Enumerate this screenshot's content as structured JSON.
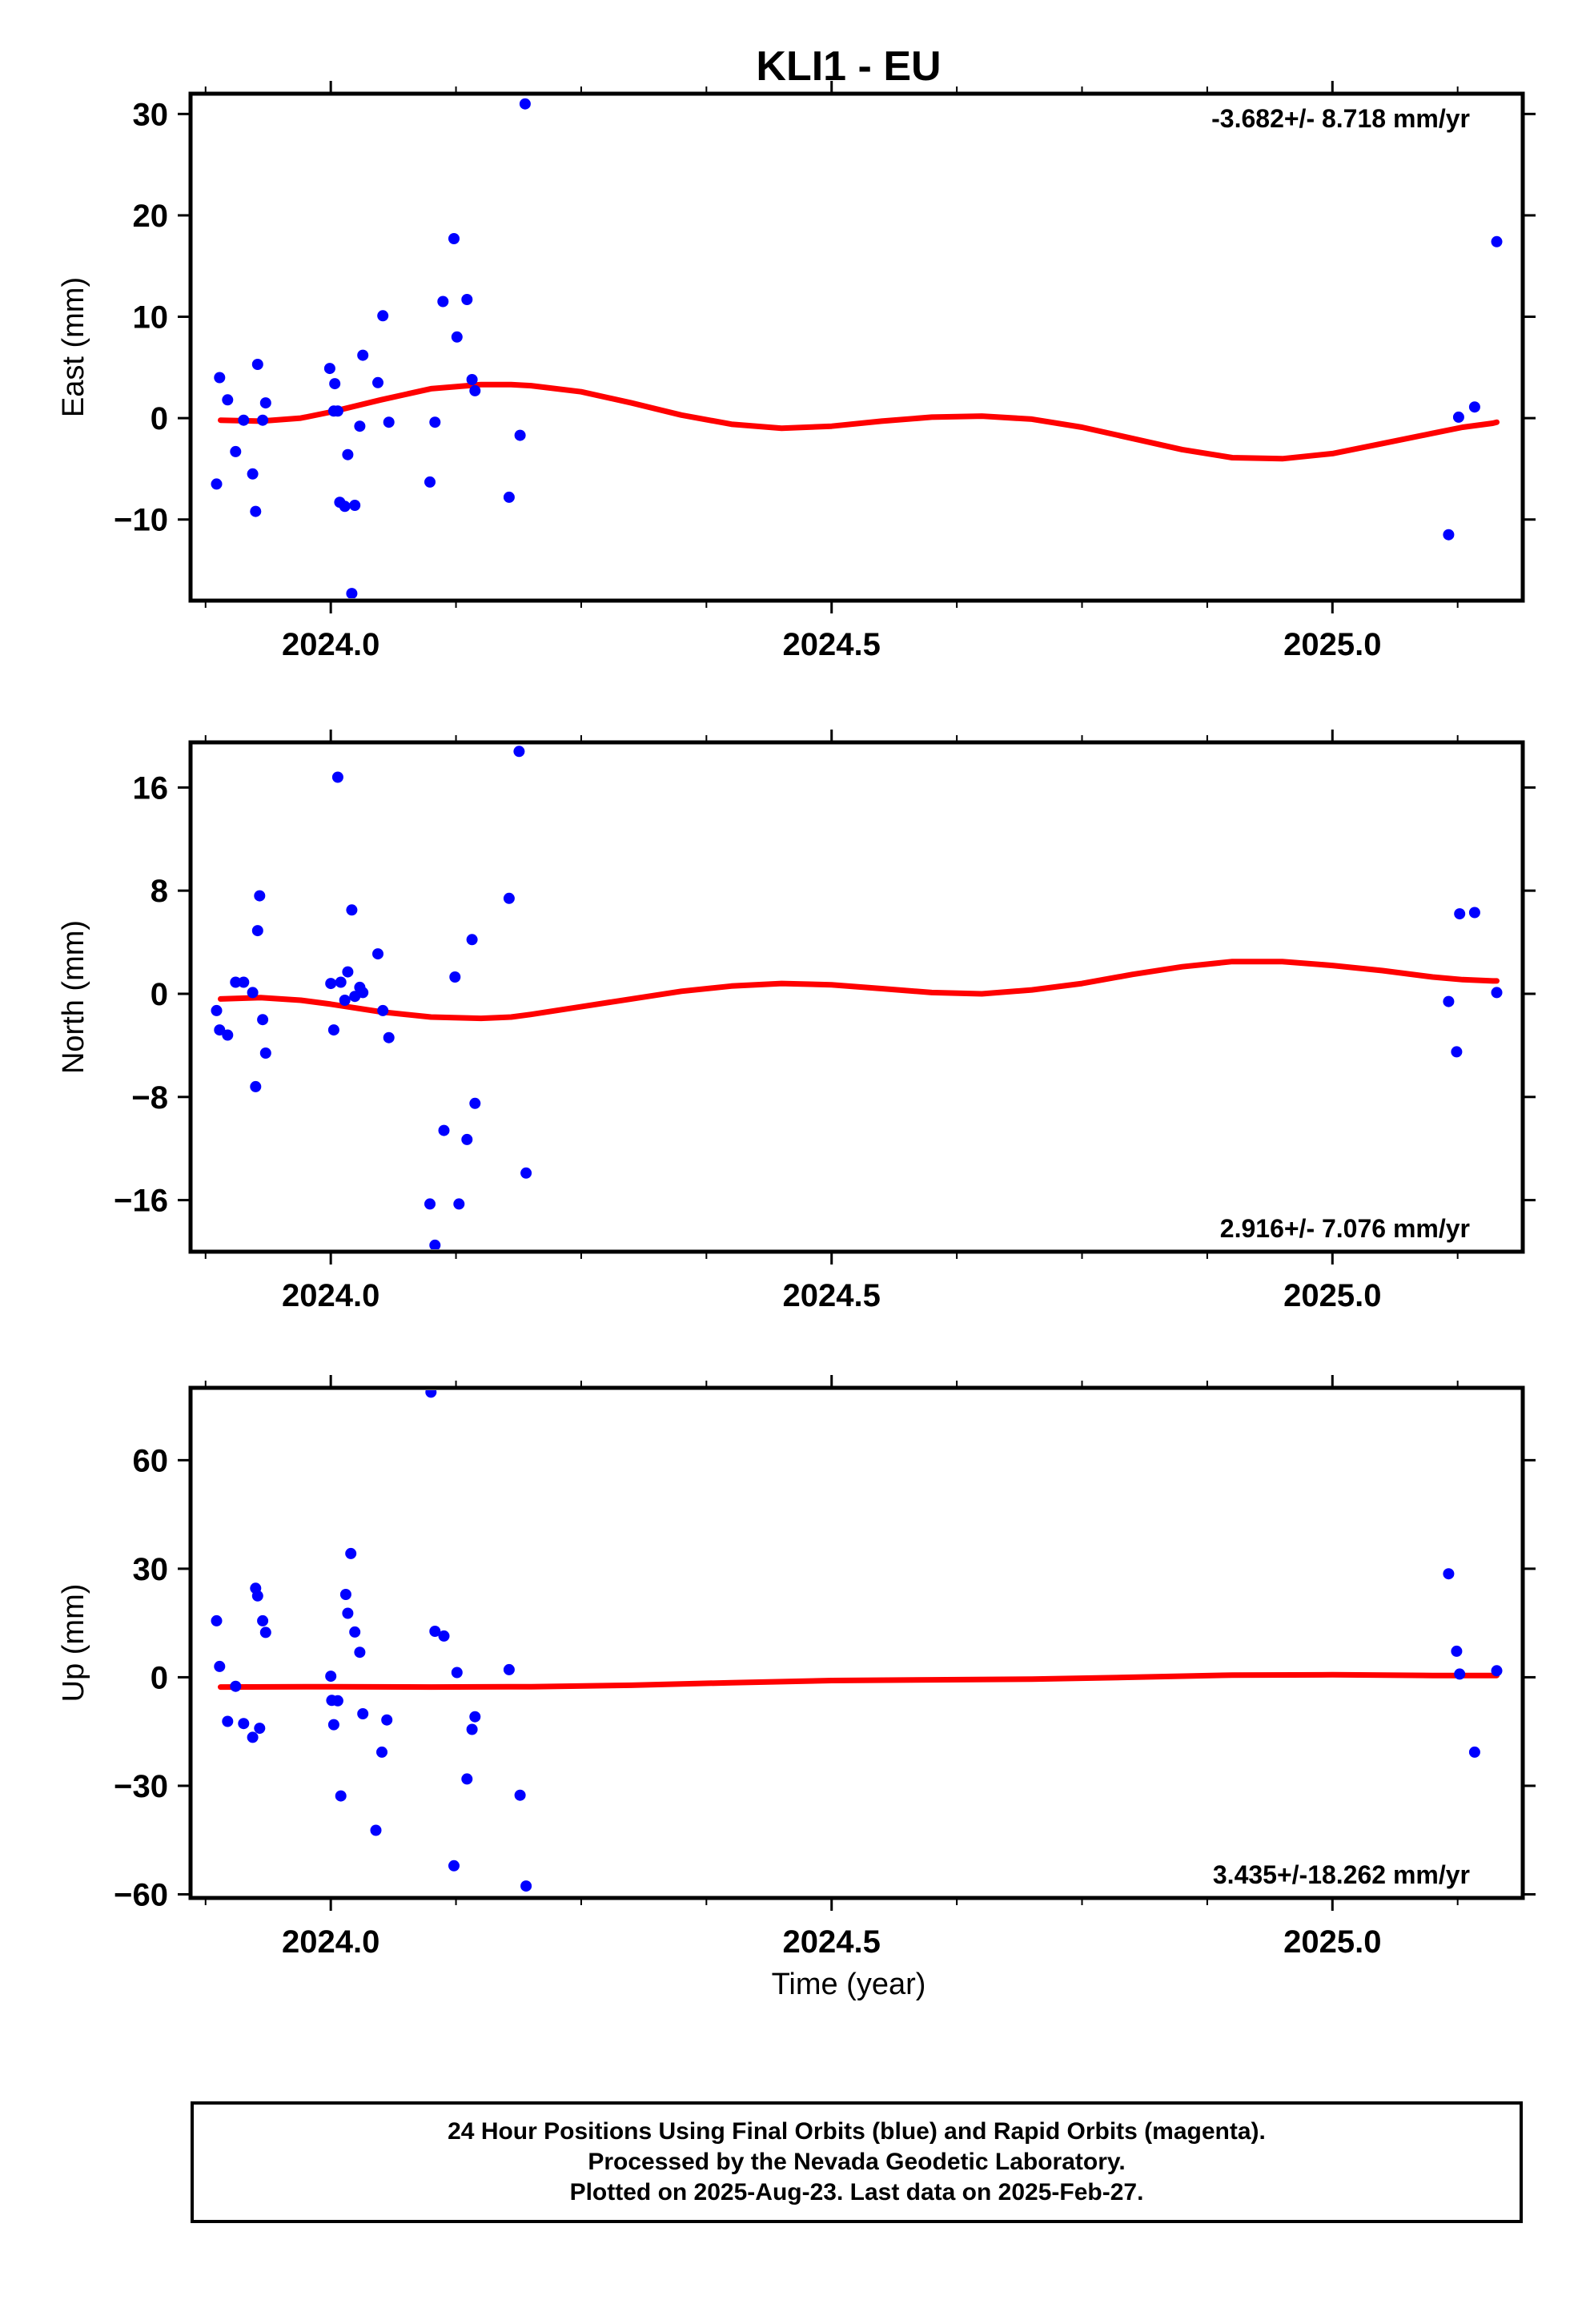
{
  "title": "KLI1 - EU",
  "xlabel": "Time (year)",
  "x_tick_labels": [
    "2024.0",
    "2024.5",
    "2025.0"
  ],
  "footer": {
    "line1": "24 Hour Positions Using Final Orbits (blue) and Rapid Orbits (magenta).",
    "line2": "Processed by the Nevada Geodetic Laboratory.",
    "line3": "Plotted on 2025-Aug-23. Last data on 2025-Feb-27."
  },
  "colors": {
    "points": "#0000ff",
    "fit": "#ff0000",
    "axes": "#000000"
  },
  "chart_data": [
    {
      "type": "scatter",
      "ylabel": "East (mm)",
      "xlim": [
        2023.86,
        2025.19
      ],
      "ylim": [
        -18,
        32
      ],
      "yticks": [
        30,
        20,
        10,
        0,
        -10
      ],
      "ytick_labels": [
        "30",
        "20",
        "10",
        "0",
        "−10"
      ],
      "xticks": [
        2024.0,
        2024.5,
        2025.0
      ],
      "rate_label": "-3.682+/- 8.718 mm/yr",
      "rate_position": "top-right",
      "points": [
        [
          2023.886,
          -6.5
        ],
        [
          2023.889,
          4.0
        ],
        [
          2023.897,
          1.8
        ],
        [
          2023.905,
          -3.3
        ],
        [
          2023.913,
          -0.2
        ],
        [
          2023.922,
          -5.5
        ],
        [
          2023.925,
          -9.2
        ],
        [
          2023.927,
          5.3
        ],
        [
          2023.932,
          -0.2
        ],
        [
          2023.935,
          1.5
        ],
        [
          2023.999,
          4.9
        ],
        [
          2024.003,
          0.7
        ],
        [
          2024.004,
          3.4
        ],
        [
          2024.007,
          0.7
        ],
        [
          2024.009,
          -8.3
        ],
        [
          2024.014,
          -8.7
        ],
        [
          2024.017,
          -3.6
        ],
        [
          2024.021,
          -17.3
        ],
        [
          2024.024,
          -8.6
        ],
        [
          2024.029,
          -0.8
        ],
        [
          2024.032,
          6.2
        ],
        [
          2024.047,
          3.5
        ],
        [
          2024.052,
          10.1
        ],
        [
          2024.058,
          -0.4
        ],
        [
          2024.099,
          -6.3
        ],
        [
          2024.104,
          -0.4
        ],
        [
          2024.112,
          11.5
        ],
        [
          2024.123,
          17.7
        ],
        [
          2024.126,
          8.0
        ],
        [
          2024.136,
          11.7
        ],
        [
          2024.141,
          3.8
        ],
        [
          2024.144,
          2.7
        ],
        [
          2024.178,
          -7.8
        ],
        [
          2024.189,
          -1.7
        ],
        [
          2024.194,
          31.0
        ],
        [
          2025.116,
          -11.5
        ],
        [
          2025.126,
          0.1
        ],
        [
          2025.142,
          1.1
        ],
        [
          2025.164,
          17.4
        ]
      ],
      "fit": [
        [
          2023.89,
          -0.2
        ],
        [
          2023.93,
          -0.3
        ],
        [
          2023.97,
          0.0
        ],
        [
          2024.0,
          0.6
        ],
        [
          2024.05,
          1.8
        ],
        [
          2024.1,
          2.9
        ],
        [
          2024.15,
          3.3
        ],
        [
          2024.18,
          3.3
        ],
        [
          2024.2,
          3.2
        ],
        [
          2024.25,
          2.6
        ],
        [
          2024.3,
          1.5
        ],
        [
          2024.35,
          0.3
        ],
        [
          2024.4,
          -0.6
        ],
        [
          2024.45,
          -1.0
        ],
        [
          2024.5,
          -0.8
        ],
        [
          2024.55,
          -0.3
        ],
        [
          2024.6,
          0.1
        ],
        [
          2024.65,
          0.2
        ],
        [
          2024.7,
          -0.1
        ],
        [
          2024.75,
          -0.9
        ],
        [
          2024.8,
          -2.0
        ],
        [
          2024.85,
          -3.1
        ],
        [
          2024.9,
          -3.9
        ],
        [
          2024.95,
          -4.0
        ],
        [
          2025.0,
          -3.5
        ],
        [
          2025.05,
          -2.5
        ],
        [
          2025.1,
          -1.5
        ],
        [
          2025.13,
          -0.9
        ],
        [
          2025.16,
          -0.5
        ],
        [
          2025.164,
          -0.4
        ]
      ]
    },
    {
      "type": "scatter",
      "ylabel": "North (mm)",
      "xlim": [
        2023.86,
        2025.19
      ],
      "ylim": [
        -20,
        19.5
      ],
      "yticks": [
        16,
        8,
        0,
        -8,
        -16
      ],
      "ytick_labels": [
        "16",
        "8",
        "0",
        "−8",
        "−16"
      ],
      "xticks": [
        2024.0,
        2024.5,
        2025.0
      ],
      "rate_label": "2.916+/- 7.076 mm/yr",
      "rate_position": "bottom-right",
      "points": [
        [
          2023.886,
          -1.3
        ],
        [
          2023.889,
          -2.8
        ],
        [
          2023.897,
          -3.2
        ],
        [
          2023.905,
          0.9
        ],
        [
          2023.913,
          0.9
        ],
        [
          2023.922,
          0.1
        ],
        [
          2023.925,
          -7.2
        ],
        [
          2023.927,
          4.9
        ],
        [
          2023.929,
          7.6
        ],
        [
          2023.932,
          -2.0
        ],
        [
          2023.935,
          -4.6
        ],
        [
          2024.0,
          0.8
        ],
        [
          2024.003,
          -2.8
        ],
        [
          2024.007,
          16.8
        ],
        [
          2024.01,
          0.9
        ],
        [
          2024.014,
          -0.5
        ],
        [
          2024.017,
          1.7
        ],
        [
          2024.021,
          6.5
        ],
        [
          2024.024,
          -0.2
        ],
        [
          2024.029,
          0.5
        ],
        [
          2024.032,
          0.1
        ],
        [
          2024.047,
          3.1
        ],
        [
          2024.052,
          -1.3
        ],
        [
          2024.058,
          -3.4
        ],
        [
          2024.099,
          -16.3
        ],
        [
          2024.104,
          -19.5
        ],
        [
          2024.113,
          -10.6
        ],
        [
          2024.124,
          1.3
        ],
        [
          2024.128,
          -16.3
        ],
        [
          2024.136,
          -11.3
        ],
        [
          2024.141,
          4.2
        ],
        [
          2024.144,
          -8.5
        ],
        [
          2024.178,
          7.4
        ],
        [
          2024.188,
          18.8
        ],
        [
          2024.195,
          -13.9
        ],
        [
          2025.116,
          -0.6
        ],
        [
          2025.124,
          -4.5
        ],
        [
          2025.127,
          6.2
        ],
        [
          2025.142,
          6.3
        ],
        [
          2025.164,
          0.1
        ]
      ],
      "fit": [
        [
          2023.89,
          -0.4
        ],
        [
          2023.93,
          -0.3
        ],
        [
          2023.97,
          -0.5
        ],
        [
          2024.0,
          -0.8
        ],
        [
          2024.05,
          -1.4
        ],
        [
          2024.1,
          -1.8
        ],
        [
          2024.15,
          -1.9
        ],
        [
          2024.18,
          -1.8
        ],
        [
          2024.2,
          -1.6
        ],
        [
          2024.25,
          -1.0
        ],
        [
          2024.3,
          -0.4
        ],
        [
          2024.35,
          0.2
        ],
        [
          2024.4,
          0.6
        ],
        [
          2024.45,
          0.8
        ],
        [
          2024.5,
          0.7
        ],
        [
          2024.55,
          0.4
        ],
        [
          2024.6,
          0.1
        ],
        [
          2024.65,
          0.0
        ],
        [
          2024.7,
          0.3
        ],
        [
          2024.75,
          0.8
        ],
        [
          2024.8,
          1.5
        ],
        [
          2024.85,
          2.1
        ],
        [
          2024.9,
          2.5
        ],
        [
          2024.95,
          2.5
        ],
        [
          2025.0,
          2.2
        ],
        [
          2025.05,
          1.8
        ],
        [
          2025.1,
          1.3
        ],
        [
          2025.13,
          1.1
        ],
        [
          2025.16,
          1.0
        ],
        [
          2025.164,
          1.0
        ]
      ]
    },
    {
      "type": "scatter",
      "ylabel": "Up (mm)",
      "xlim": [
        2023.86,
        2025.19
      ],
      "ylim": [
        -61,
        80
      ],
      "yticks": [
        60,
        30,
        0,
        -30,
        -60
      ],
      "ytick_labels": [
        "60",
        "30",
        "0",
        "−30",
        "−60"
      ],
      "xticks": [
        2024.0,
        2024.5,
        2025.0
      ],
      "rate_label": "3.435+/-18.262 mm/yr",
      "rate_position": "bottom-right",
      "points": [
        [
          2023.886,
          15.6
        ],
        [
          2023.889,
          3.0
        ],
        [
          2023.897,
          -12.2
        ],
        [
          2023.905,
          -2.5
        ],
        [
          2023.913,
          -12.8
        ],
        [
          2023.922,
          -16.6
        ],
        [
          2023.925,
          24.6
        ],
        [
          2023.927,
          22.5
        ],
        [
          2023.929,
          -14.1
        ],
        [
          2023.932,
          15.6
        ],
        [
          2023.935,
          12.4
        ],
        [
          2024.0,
          0.3
        ],
        [
          2024.001,
          -6.4
        ],
        [
          2024.003,
          -13.1
        ],
        [
          2024.007,
          -6.5
        ],
        [
          2024.01,
          -32.8
        ],
        [
          2024.015,
          22.9
        ],
        [
          2024.017,
          17.7
        ],
        [
          2024.02,
          34.2
        ],
        [
          2024.024,
          12.5
        ],
        [
          2024.029,
          6.9
        ],
        [
          2024.032,
          -10.1
        ],
        [
          2024.045,
          -42.3
        ],
        [
          2024.051,
          -20.7
        ],
        [
          2024.056,
          -11.8
        ],
        [
          2024.1,
          78.8
        ],
        [
          2024.104,
          12.7
        ],
        [
          2024.113,
          11.4
        ],
        [
          2024.123,
          -52.1
        ],
        [
          2024.126,
          1.3
        ],
        [
          2024.136,
          -28.1
        ],
        [
          2024.141,
          -14.4
        ],
        [
          2024.144,
          -10.9
        ],
        [
          2024.178,
          2.1
        ],
        [
          2024.189,
          -32.6
        ],
        [
          2024.195,
          -57.7
        ],
        [
          2025.116,
          28.6
        ],
        [
          2025.124,
          7.2
        ],
        [
          2025.127,
          0.9
        ],
        [
          2025.142,
          -20.7
        ],
        [
          2025.164,
          1.8
        ]
      ],
      "fit": [
        [
          2023.89,
          -2.7
        ],
        [
          2024.0,
          -2.6
        ],
        [
          2024.1,
          -2.7
        ],
        [
          2024.2,
          -2.6
        ],
        [
          2024.3,
          -2.2
        ],
        [
          2024.4,
          -1.5
        ],
        [
          2024.5,
          -0.9
        ],
        [
          2024.6,
          -0.7
        ],
        [
          2024.7,
          -0.5
        ],
        [
          2024.8,
          0.0
        ],
        [
          2024.9,
          0.6
        ],
        [
          2025.0,
          0.7
        ],
        [
          2025.1,
          0.5
        ],
        [
          2025.164,
          0.5
        ]
      ]
    }
  ]
}
